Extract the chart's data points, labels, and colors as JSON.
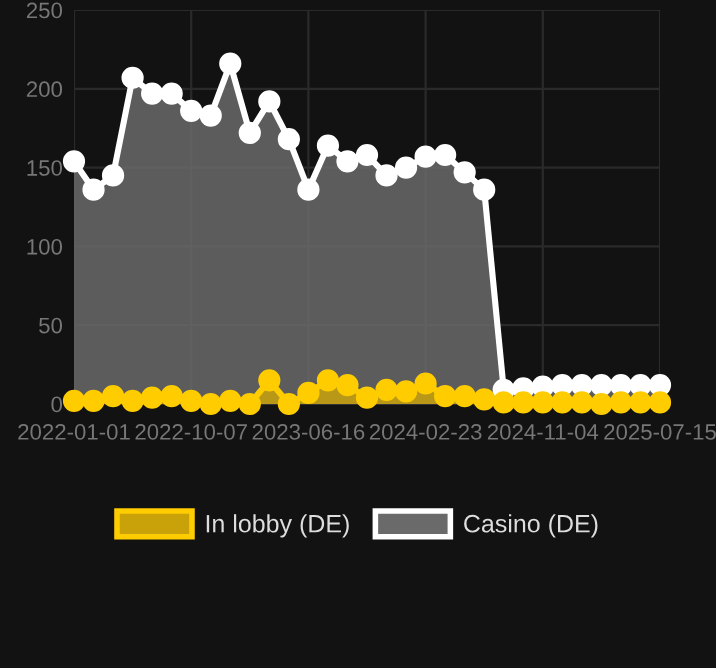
{
  "chart_data": {
    "type": "area",
    "categories": [
      "2022-01-01",
      null,
      null,
      null,
      null,
      null,
      "2022-10-07",
      null,
      null,
      null,
      null,
      null,
      "2023-06-16",
      null,
      null,
      null,
      null,
      null,
      "2024-02-23",
      null,
      null,
      null,
      null,
      null,
      "2024-11-04",
      null,
      null,
      null,
      null,
      null,
      "2025-07-15"
    ],
    "series": [
      {
        "name": "In lobby (DE)",
        "color": "#ffcc00",
        "values": [
          2,
          2,
          5,
          2,
          4,
          5,
          2,
          0,
          2,
          0,
          15,
          0,
          7,
          15,
          12,
          4,
          9,
          8,
          13,
          5,
          5,
          3,
          1,
          1,
          1,
          1,
          1,
          0,
          1,
          1,
          1
        ]
      },
      {
        "name": "Casino (DE)",
        "color": "#ffffff",
        "values": [
          154,
          136,
          145,
          207,
          197,
          197,
          186,
          183,
          216,
          172,
          192,
          168,
          136,
          164,
          154,
          158,
          145,
          150,
          157,
          158,
          147,
          136,
          9,
          10,
          11,
          12,
          12,
          12,
          12,
          12,
          12
        ]
      }
    ],
    "ylim": [
      0,
      250
    ],
    "yticks": [
      0,
      50,
      100,
      150,
      200,
      250
    ],
    "grid": true,
    "legend": "bottom",
    "marker": "circle",
    "line_style": "solid"
  }
}
